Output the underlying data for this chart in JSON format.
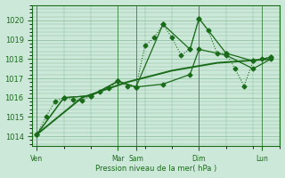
{
  "background_color": "#cce8d8",
  "grid_color": "#88bb99",
  "line_color": "#1a6b1a",
  "xlabel": "Pression niveau de la mer( hPa )",
  "ylim": [
    1013.5,
    1020.8
  ],
  "yticks": [
    1014,
    1015,
    1016,
    1017,
    1018,
    1019,
    1020
  ],
  "day_labels": [
    "Ven",
    "Mar",
    "Sam",
    "Dim",
    "Lun"
  ],
  "day_positions": [
    0,
    9,
    11,
    18,
    25
  ],
  "xmin": -0.5,
  "xmax": 27,
  "series": [
    {
      "x": [
        0,
        1,
        2,
        3,
        4,
        5,
        6,
        7,
        8,
        9,
        10,
        11,
        12,
        13,
        14,
        15,
        16,
        17,
        18,
        19,
        20,
        21,
        22,
        23,
        24,
        25,
        26
      ],
      "y": [
        1014.1,
        1015.0,
        1015.8,
        1016.0,
        1015.9,
        1015.85,
        1016.1,
        1016.3,
        1016.5,
        1016.85,
        1016.6,
        1016.55,
        1018.7,
        1019.1,
        1019.8,
        1019.1,
        1018.2,
        1018.5,
        1020.1,
        1019.5,
        1018.3,
        1018.3,
        1017.5,
        1016.6,
        1017.9,
        1018.0,
        1018.1
      ],
      "style": "dotted",
      "marker": "D",
      "markersize": 2.5,
      "linewidth": 0.8
    },
    {
      "x": [
        0,
        3,
        6,
        9,
        11,
        14,
        17,
        18,
        21,
        24,
        26
      ],
      "y": [
        1014.1,
        1016.0,
        1016.1,
        1016.85,
        1016.55,
        1019.8,
        1018.5,
        1020.1,
        1018.3,
        1017.9,
        1018.1
      ],
      "style": "solid",
      "marker": "D",
      "markersize": 2.5,
      "linewidth": 0.9
    },
    {
      "x": [
        0,
        3,
        6,
        9,
        11,
        14,
        17,
        18,
        21,
        24,
        26
      ],
      "y": [
        1014.1,
        1016.0,
        1016.1,
        1016.85,
        1016.55,
        1016.7,
        1017.2,
        1018.5,
        1018.2,
        1017.5,
        1018.0
      ],
      "style": "solid",
      "marker": "D",
      "markersize": 2.5,
      "linewidth": 0.9
    },
    {
      "x": [
        0,
        5,
        10,
        15,
        20,
        26
      ],
      "y": [
        1014.1,
        1016.0,
        1016.8,
        1017.4,
        1017.8,
        1018.0
      ],
      "style": "solid",
      "marker": null,
      "markersize": 0,
      "linewidth": 1.4
    }
  ]
}
